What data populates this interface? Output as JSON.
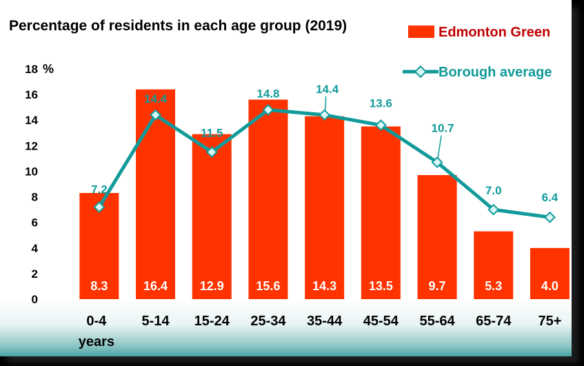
{
  "chart_data": {
    "type": "bar",
    "title": "Percentage of residents in each age group (2019)",
    "y_unit": "%",
    "ylim": [
      0,
      18
    ],
    "y_ticks": [
      "0",
      "2",
      "4",
      "6",
      "8",
      "10",
      "12",
      "14",
      "16",
      "18"
    ],
    "categories": [
      [
        "0-4",
        "years"
      ],
      [
        "5-14"
      ],
      [
        "15-24"
      ],
      [
        "25-34"
      ],
      [
        "35-44"
      ],
      [
        "45-54"
      ],
      [
        "55-64"
      ],
      [
        "65-74"
      ],
      [
        "75+"
      ]
    ],
    "grid": false,
    "legend_position": "top-right",
    "series": [
      {
        "name": "Edmonton Green",
        "type": "bar",
        "color": "#ff3300",
        "values": [
          8.3,
          16.4,
          12.9,
          15.6,
          14.3,
          13.5,
          9.7,
          5.3,
          4.0
        ],
        "labels": [
          "8.3",
          "16.4",
          "12.9",
          "15.6",
          "14.3",
          "13.5",
          "9.7",
          "5.3",
          "4.0"
        ]
      },
      {
        "name": "Borough average",
        "type": "line",
        "color": "#119a9a",
        "values": [
          7.2,
          14.4,
          11.5,
          14.8,
          14.4,
          13.6,
          10.7,
          7.0,
          6.4
        ],
        "labels": [
          "7.2",
          "14.4",
          "11.5",
          "14.8",
          "14.4",
          "13.6",
          "10.7",
          "7.0",
          "6.4"
        ]
      }
    ]
  }
}
